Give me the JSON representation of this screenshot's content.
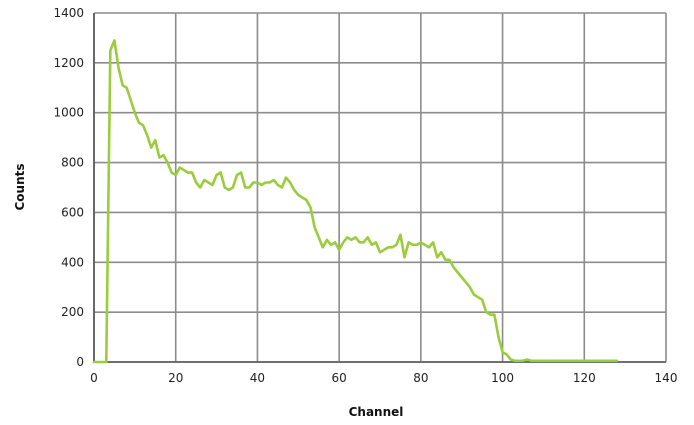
{
  "chart_data": {
    "type": "line",
    "title": "",
    "xlabel": "Channel",
    "ylabel": "Counts",
    "xlim": [
      0,
      140
    ],
    "ylim": [
      0,
      1400
    ],
    "x_ticks": [
      0,
      20,
      40,
      60,
      80,
      100,
      120,
      140
    ],
    "y_ticks": [
      0,
      200,
      400,
      600,
      800,
      1000,
      1200,
      1400
    ],
    "grid": true,
    "legend": "none",
    "colors": {
      "line": "#9acd3c",
      "grid": "#8c8c8c",
      "axis": "#555555"
    },
    "series": [
      {
        "x": [
          0,
          1,
          2,
          3,
          4,
          5,
          6,
          7,
          8,
          9,
          10,
          11,
          12,
          13,
          14,
          15,
          16,
          17,
          18,
          19,
          20,
          21,
          22,
          23,
          24,
          25,
          26,
          27,
          28,
          29,
          30,
          31,
          32,
          33,
          34,
          35,
          36,
          37,
          38,
          39,
          40,
          41,
          42,
          43,
          44,
          45,
          46,
          47,
          48,
          49,
          50,
          51,
          52,
          53,
          54,
          55,
          56,
          57,
          58,
          59,
          60,
          61,
          62,
          63,
          64,
          65,
          66,
          67,
          68,
          69,
          70,
          71,
          72,
          73,
          74,
          75,
          76,
          77,
          78,
          79,
          80,
          81,
          82,
          83,
          84,
          85,
          86,
          87,
          88,
          89,
          90,
          91,
          92,
          93,
          94,
          95,
          96,
          97,
          98,
          99,
          100,
          101,
          102,
          103,
          104,
          105,
          106,
          107,
          108,
          109,
          110,
          111,
          112,
          113,
          114,
          115,
          116,
          117,
          118,
          119,
          120,
          121,
          122,
          123,
          124,
          125,
          126,
          127,
          128
        ],
        "y": [
          0,
          0,
          0,
          0,
          1250,
          1290,
          1180,
          1110,
          1100,
          1050,
          1000,
          960,
          950,
          910,
          860,
          890,
          820,
          830,
          800,
          760,
          750,
          780,
          770,
          760,
          760,
          720,
          700,
          730,
          720,
          710,
          750,
          760,
          700,
          690,
          700,
          750,
          760,
          700,
          700,
          720,
          720,
          710,
          720,
          720,
          730,
          710,
          700,
          740,
          720,
          690,
          670,
          660,
          650,
          620,
          540,
          500,
          460,
          490,
          470,
          480,
          450,
          480,
          500,
          490,
          500,
          480,
          480,
          500,
          470,
          480,
          440,
          450,
          460,
          460,
          470,
          510,
          420,
          480,
          470,
          470,
          480,
          470,
          460,
          480,
          420,
          440,
          410,
          410,
          380,
          360,
          340,
          320,
          300,
          270,
          260,
          250,
          200,
          190,
          190,
          100,
          40,
          30,
          10,
          5,
          5,
          5,
          10,
          5,
          5,
          5,
          5,
          5,
          5,
          5,
          5,
          5,
          5,
          5,
          5,
          5,
          5,
          5,
          5,
          5,
          5,
          5,
          5,
          5,
          5
        ]
      }
    ]
  }
}
